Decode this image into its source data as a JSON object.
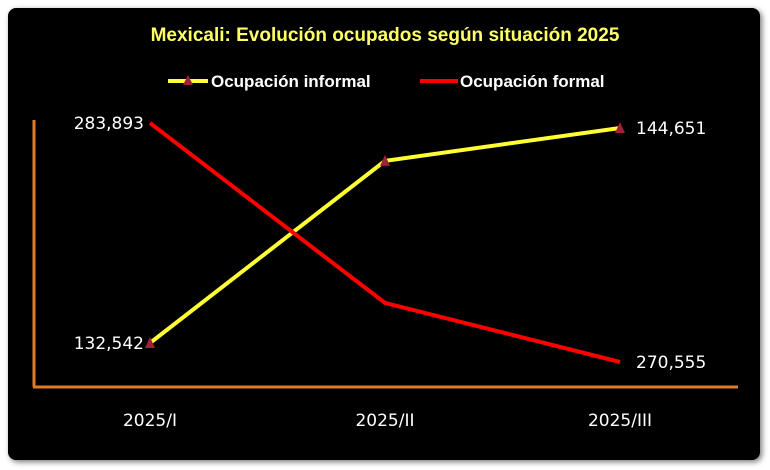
{
  "chart_data": {
    "type": "line",
    "title": "Mexicali: Evolución ocupados según situación 2025",
    "categories": [
      "2025/I",
      "2025/II",
      "2025/III"
    ],
    "series": [
      {
        "name": "Ocupación informal",
        "values": [
          132542,
          142800,
          144651
        ],
        "labels": [
          "132,542",
          "",
          "144,651"
        ],
        "color": "#ffff33",
        "marker": "triangle",
        "marker_color": "#a0203a"
      },
      {
        "name": "Ocupación formal",
        "values": [
          283893,
          273850,
          270555
        ],
        "labels": [
          "283,893",
          "",
          "270,555"
        ],
        "color": "#ff0000"
      }
    ],
    "legend_position": "top",
    "grid": false,
    "axis_color": "#e07a2a",
    "title_color": "#ffff66",
    "background": "#000000"
  }
}
